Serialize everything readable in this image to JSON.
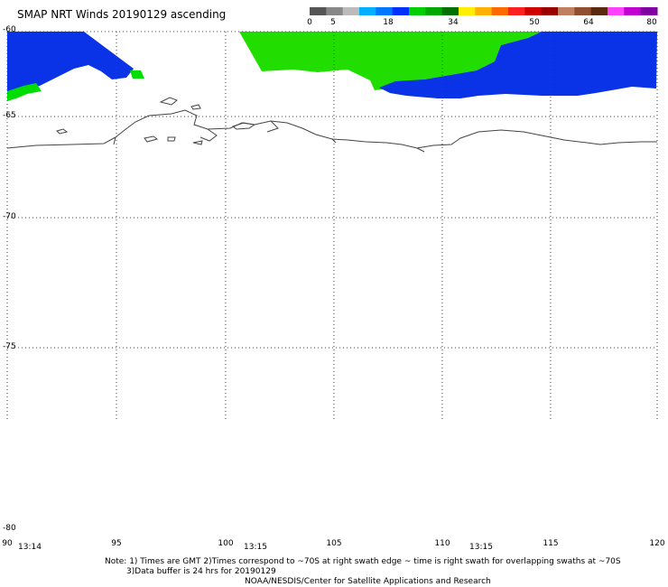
{
  "title": "SMAP NRT Winds 20190129 ascending",
  "colorbar": {
    "labels": [
      "0",
      "5",
      "18",
      "34",
      "50",
      "64",
      "80"
    ],
    "segments": [
      {
        "color": "#555555"
      },
      {
        "color": "#888888"
      },
      {
        "color": "#bbbbbb"
      },
      {
        "color": "#00b0ff"
      },
      {
        "color": "#0077ff"
      },
      {
        "color": "#0030ff"
      },
      {
        "color": "#00d000"
      },
      {
        "color": "#00a800"
      },
      {
        "color": "#007000"
      },
      {
        "color": "#ffee00"
      },
      {
        "color": "#ffb000"
      },
      {
        "color": "#ff6a00"
      },
      {
        "color": "#ff2020"
      },
      {
        "color": "#d00000"
      },
      {
        "color": "#9a0000"
      },
      {
        "color": "#c08060"
      },
      {
        "color": "#905030"
      },
      {
        "color": "#5a2a10"
      },
      {
        "color": "#ff40ff"
      },
      {
        "color": "#c000d0"
      },
      {
        "color": "#8000a0"
      }
    ]
  },
  "axes": {
    "lat_labels": [
      "-60",
      "-65",
      "-70",
      "-75",
      "-80"
    ],
    "lon_labels": [
      "90",
      "95",
      "100",
      "105",
      "110",
      "115",
      "120"
    ]
  },
  "swath_times": [
    "13:14",
    "13:15",
    "13:15"
  ],
  "notes": {
    "line1": "Note: 1) Times are GMT 2)Times correspond to ~70S at right swath edge ~ time is right swath for overlapping swaths at ~70S",
    "line2": "3)Data buffer is 24 hrs for 20190129",
    "line3": "NOAA/NESDIS/Center for Satellite Applications and Research"
  }
}
